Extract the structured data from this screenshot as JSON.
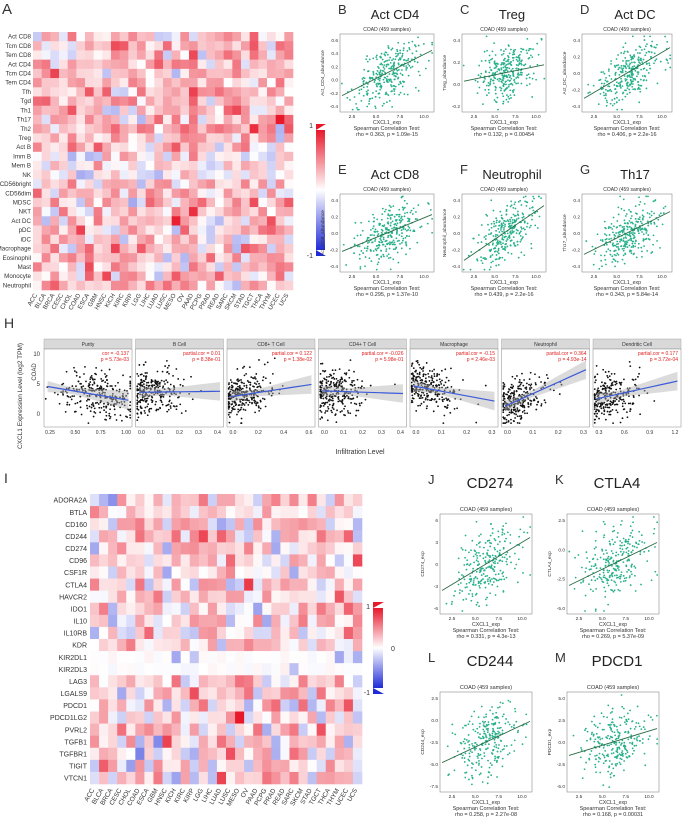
{
  "figure": {
    "panel_A": {
      "letter": "A",
      "rows": [
        "Act CD8",
        "Tcm CD8",
        "Tem CD8",
        "Act CD4",
        "Tcm CD4",
        "Tem CD4",
        "Tfh",
        "Tgd",
        "Th1",
        "Th17",
        "Th2",
        "Treg",
        "Act B",
        "Imm B",
        "Mem B",
        "NK",
        "CD56bright",
        "CD56dim",
        "MDSC",
        "NKT",
        "Act DC",
        "pDC",
        "iDC",
        "Macrophage",
        "Eosinophil",
        "Mast",
        "Monocyte",
        "Neutrophil"
      ],
      "cols": [
        "ACC",
        "BLCA",
        "BRCA",
        "CESC",
        "CHOL",
        "COAD",
        "ESCA",
        "GBM",
        "HNSC",
        "KICH",
        "KIRC",
        "KIRP",
        "LGG",
        "LIHC",
        "LUAD",
        "LUSC",
        "MESO",
        "OV",
        "PAAD",
        "PCPG",
        "PRAD",
        "READ",
        "SARC",
        "SKCM",
        "STAD",
        "TGCT",
        "THCA",
        "THYM",
        "UCEC",
        "UCS"
      ],
      "legend_max": "1",
      "legend_min": "-1"
    },
    "scatter_panels": [
      {
        "letter": "B",
        "title": "Act CD4",
        "subtitle": "COAD (459 samples)",
        "ylabel": "Act_CD4_abundance",
        "xlabel": "CXCL1_exp",
        "test": "Spearman Correlation Test:",
        "stat": "rho = 0.363, p = 1.09e-15",
        "ticks_y": [
          "0.6",
          "0.4",
          "0.2",
          "0.0",
          "-0.2",
          "-0.4"
        ],
        "ticks_x": [
          "2.5",
          "5.0",
          "7.5",
          "10.0"
        ]
      },
      {
        "letter": "C",
        "title": "Treg",
        "subtitle": "COAD (459 samples)",
        "ylabel": "Treg_abundance",
        "xlabel": "CXCL1_exp",
        "test": "Spearman Correlation Test:",
        "stat": "rho = 0.132, p = 0.00454",
        "ticks_y": [
          "0.4",
          "0.2",
          "0.0",
          "-0.2"
        ],
        "ticks_x": [
          "2.5",
          "5.0",
          "7.5",
          "10.0"
        ]
      },
      {
        "letter": "D",
        "title": "Act DC",
        "subtitle": "COAD (459 samples)",
        "ylabel": "Act_DC_abundance",
        "xlabel": "CXCL1_exp",
        "test": "Spearman Correlation Test:",
        "stat": "rho = 0.406, p = 2.2e-16",
        "ticks_y": [
          "0.4",
          "0.2",
          "0.0",
          "-0.2",
          "-0.4"
        ],
        "ticks_x": [
          "2.5",
          "5.0",
          "7.5",
          "10.0"
        ]
      },
      {
        "letter": "E",
        "title": "Act CD8",
        "subtitle": "COAD (459 samples)",
        "ylabel": "Act_CD8_abundance",
        "xlabel": "CXCL1_exp",
        "test": "Spearman Correlation Test:",
        "stat": "rho = 0.295, p = 1.37e-10",
        "ticks_y": [
          "0.4",
          "0.2",
          "0.0",
          "-0.2",
          "-0.4"
        ],
        "ticks_x": [
          "2.5",
          "5.0",
          "7.5",
          "10.0"
        ]
      },
      {
        "letter": "F",
        "title": "Neutrophil",
        "subtitle": "COAD (459 samples)",
        "ylabel": "Neutrophil_abundance",
        "xlabel": "CXCL1_exp",
        "test": "Spearman Correlation Test:",
        "stat": "rho = 0.439, p = 2.2e-16",
        "ticks_y": [
          "0.4",
          "0.2",
          "0.0",
          "-0.2",
          "-0.4"
        ],
        "ticks_x": [
          "2.5",
          "5.0",
          "7.5",
          "10.0"
        ]
      },
      {
        "letter": "G",
        "title": "Th17",
        "subtitle": "COAD (459 samples)",
        "ylabel": "Th17_abundance",
        "xlabel": "CXCL1_exp",
        "test": "Spearman Correlation Test:",
        "stat": "rho = 0.343, p = 5.84e-14",
        "ticks_y": [
          "0.4",
          "0.2",
          "0.0",
          "-0.2",
          "-0.4"
        ],
        "ticks_x": [
          "2.5",
          "5.0",
          "7.5",
          "10.0"
        ]
      },
      {
        "letter": "J",
        "title": "CD274",
        "subtitle": "COAD (459 samples)",
        "ylabel": "CD274_exp",
        "xlabel": "CXCL1_exp",
        "test": "Spearman Correlation Test:",
        "stat": "rho = 0.331, p = 4.3e-13",
        "ticks_y": [
          "6",
          "3",
          "0",
          "-3",
          "-6"
        ],
        "ticks_x": [
          "2.5",
          "5.0",
          "7.5",
          "10.0"
        ]
      },
      {
        "letter": "K",
        "title": "CTLA4",
        "subtitle": "COAD (459 samples)",
        "ylabel": "CTLA4_exp",
        "xlabel": "CXCL1_exp",
        "test": "Spearman Correlation Test:",
        "stat": "rho = 0.269, p = 5.37e-09",
        "ticks_y": [
          "2.5",
          "0.0",
          "-2.5",
          "-5.0"
        ],
        "ticks_x": [
          "2.5",
          "5.0",
          "7.5",
          "10.0"
        ]
      },
      {
        "letter": "L",
        "title": "CD244",
        "subtitle": "COAD (459 samples)",
        "ylabel": "CD244_exp",
        "xlabel": "CXCL1_exp",
        "test": "Spearman Correlation Test:",
        "stat": "rho = 0.258, p = 2.27e-08",
        "ticks_y": [
          "2.5",
          "0.0",
          "-2.5",
          "-5.0",
          "-7.5"
        ],
        "ticks_x": [
          "2.5",
          "5.0",
          "7.5",
          "10.0"
        ]
      },
      {
        "letter": "M",
        "title": "PDCD1",
        "subtitle": "COAD (459 samples)",
        "ylabel": "PDCD1_exp",
        "xlabel": "CXCL1_exp",
        "test": "Spearman Correlation Test:",
        "stat": "rho = 0.168, p = 0.00031",
        "ticks_y": [
          "5.0",
          "2.5",
          "0.0",
          "-2.5",
          "-5.0"
        ],
        "ticks_x": [
          "2.5",
          "5.0",
          "7.5",
          "10.0"
        ]
      }
    ],
    "panel_H": {
      "letter": "H",
      "ylabel": "CXCL1 Expression Level (log2 TPM)",
      "row_label": "COAD",
      "xlabel": "Infiltration Level",
      "y_ticks": [
        "10",
        "5",
        "0"
      ],
      "facets": [
        {
          "name": "Purity",
          "cor": "cor = -0.137",
          "p": "p = 5.73e-03",
          "ticks": [
            "0.25",
            "0.50",
            "0.75",
            "1.00"
          ]
        },
        {
          "name": "B Cell",
          "cor": "partial.cor = 0.01",
          "p": "p = 8.38e-01",
          "ticks": [
            "0.0",
            "0.1",
            "0.2",
            "0.3",
            "0.4"
          ]
        },
        {
          "name": "CD8+ T Cell",
          "cor": "partial.cor = 0.122",
          "p": "p = 1.38e-02",
          "ticks": [
            "0.0",
            "0.2",
            "0.4",
            "0.6"
          ]
        },
        {
          "name": "CD4+ T Cell",
          "cor": "partial.cor = -0.026",
          "p": "p = 5.98e-01",
          "ticks": [
            "0.0",
            "0.1",
            "0.2",
            "0.3",
            "0.4"
          ]
        },
        {
          "name": "Macrophage",
          "cor": "partial.cor = -0.15",
          "p": "p = 2.46e-03",
          "ticks": [
            "0.0",
            "0.1",
            "0.2",
            "0.3"
          ]
        },
        {
          "name": "Neutrophil",
          "cor": "partial.cor = 0.364",
          "p": "p = 4.93e-14",
          "ticks": [
            "0.0",
            "0.1",
            "0.2",
            "0.3"
          ]
        },
        {
          "name": "Dendritic Cell",
          "cor": "partial.cor = 0.177",
          "p": "p = 3.72e-04",
          "ticks": [
            "0.3",
            "0.6",
            "0.9",
            "1.2"
          ]
        }
      ]
    },
    "panel_I": {
      "letter": "I",
      "rows": [
        "ADORA2A",
        "BTLA",
        "CD160",
        "CD244",
        "CD274",
        "CD96",
        "CSF1R",
        "CTLA4",
        "HAVCR2",
        "IDO1",
        "IL10",
        "IL10RB",
        "KDR",
        "KIR2DL1",
        "KIR2DL3",
        "LAG3",
        "LGALS9",
        "PDCD1",
        "PDCD1LG2",
        "PVRL2",
        "TGFB1",
        "TGFBR1",
        "TIGIT",
        "VTCN1"
      ],
      "cols": [
        "ACC",
        "BLCA",
        "BRCA",
        "CESC",
        "CHOL",
        "COAD",
        "ESCA",
        "GBM",
        "HNSC",
        "KICH",
        "KIRC",
        "KIRP",
        "LGG",
        "LIHC",
        "LUAD",
        "LUSC",
        "MESO",
        "OV",
        "PAAD",
        "PCPG",
        "PRAD",
        "READ",
        "SARC",
        "SKCM",
        "STAD",
        "TGCT",
        "THCA",
        "THYM",
        "UCEC",
        "UCS"
      ],
      "legend_max": "1",
      "legend_mid": "0",
      "legend_min": "-1"
    }
  },
  "colors": {
    "positive": "#e8182b",
    "negative": "#1f2bd8",
    "neutral": "#ffffff",
    "points": "#27b08a",
    "fit_line": "#2a6b45",
    "loess": "#3b5bd9"
  }
}
